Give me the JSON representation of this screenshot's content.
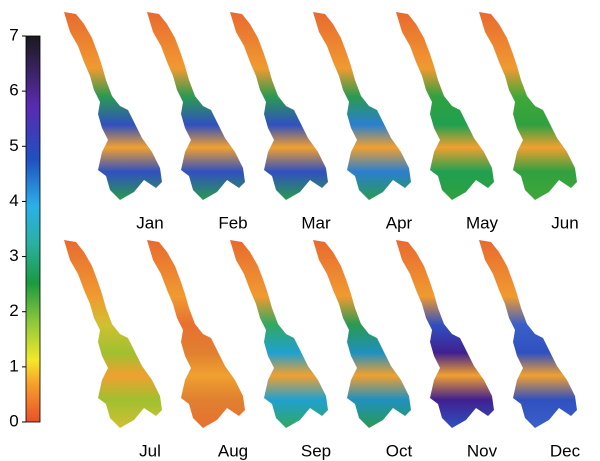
{
  "colorbar": {
    "range": [
      0,
      7
    ],
    "ticks": [
      0,
      1,
      2,
      3,
      4,
      5,
      6,
      7
    ]
  },
  "panels": [
    {
      "label": "Jan"
    },
    {
      "label": "Feb"
    },
    {
      "label": "Mar"
    },
    {
      "label": "Apr"
    },
    {
      "label": "May"
    },
    {
      "label": "Jun"
    },
    {
      "label": "Jul"
    },
    {
      "label": "Aug"
    },
    {
      "label": "Sep"
    },
    {
      "label": "Oct"
    },
    {
      "label": "Nov"
    },
    {
      "label": "Dec"
    }
  ]
}
